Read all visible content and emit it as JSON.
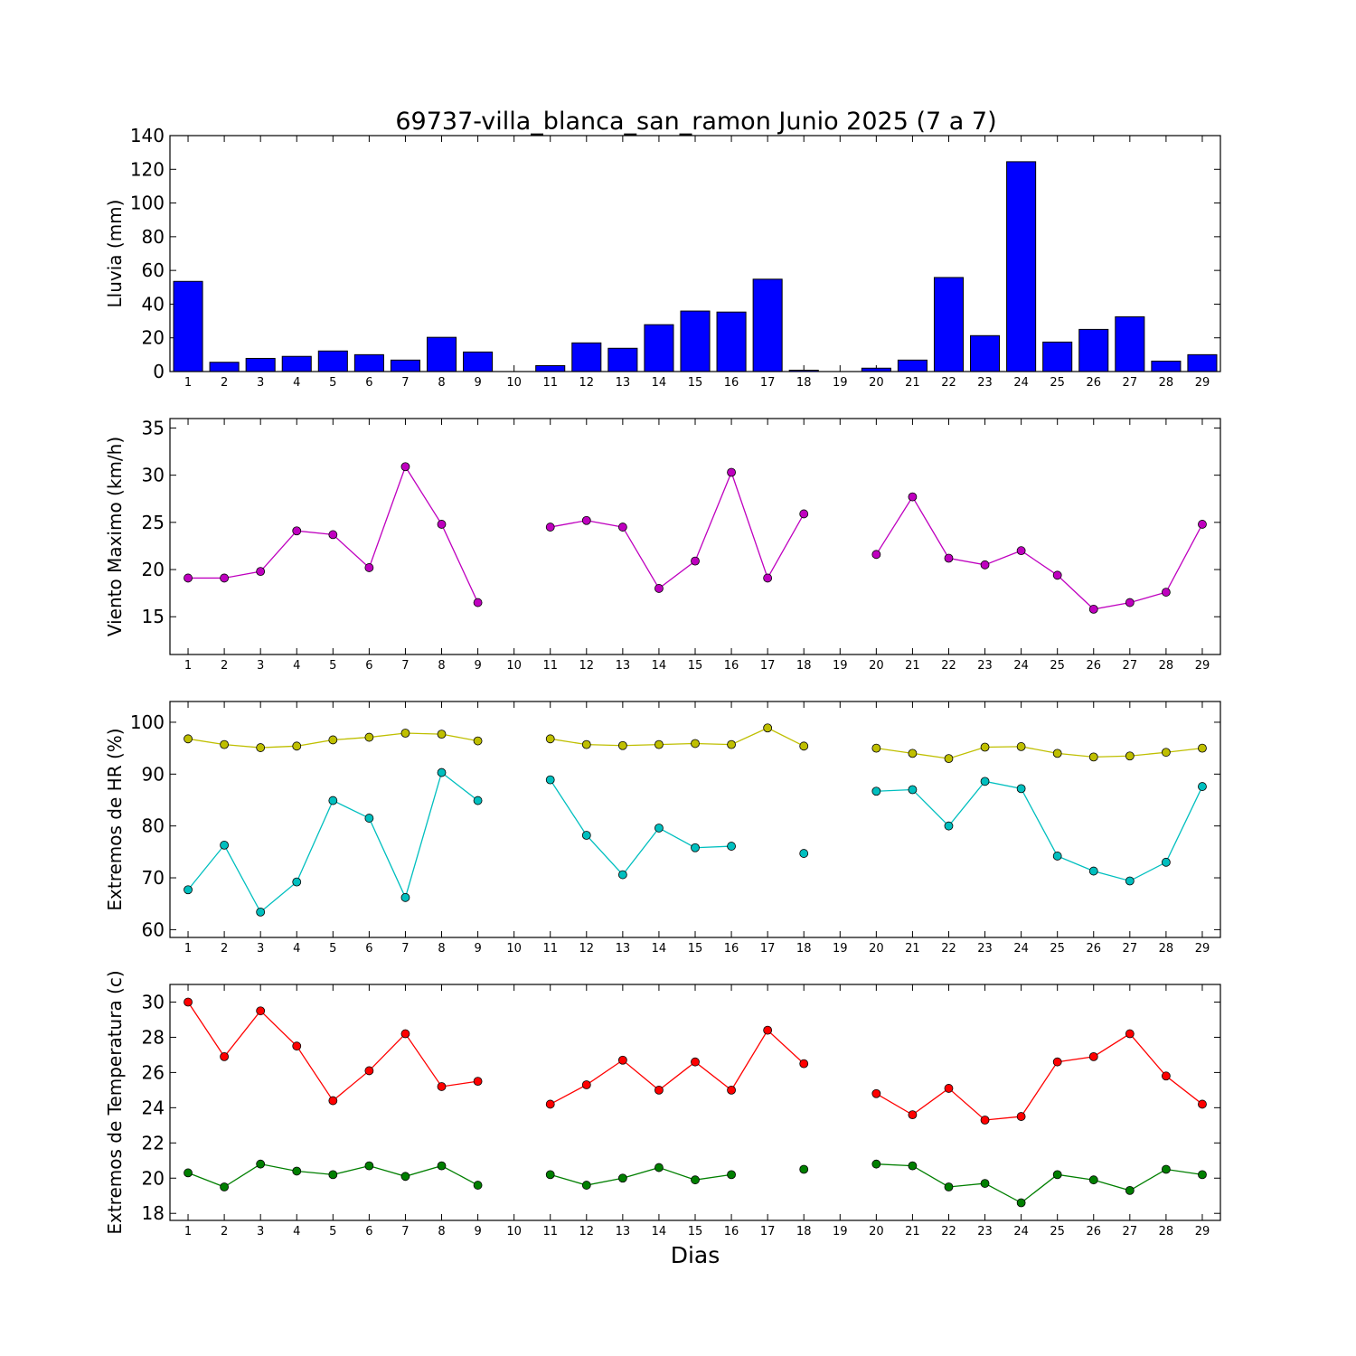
{
  "figure": {
    "title": "69737-villa_blanca_san_ramon Junio 2025  (7 a 7)",
    "xlabel": "Dias"
  },
  "chart_data": [
    {
      "type": "bar",
      "ylabel": "Lluvia (mm)",
      "ylim": [
        0,
        140
      ],
      "yticks": [
        0,
        20,
        40,
        60,
        80,
        100,
        120,
        140
      ],
      "categories": [
        "1",
        "2",
        "3",
        "4",
        "5",
        "6",
        "7",
        "8",
        "9",
        "10",
        "11",
        "12",
        "13",
        "14",
        "15",
        "16",
        "17",
        "18",
        "19",
        "20",
        "21",
        "22",
        "23",
        "24",
        "25",
        "26",
        "27",
        "28",
        "29"
      ],
      "series": [
        {
          "color": "#0000ff",
          "values": [
            53.5,
            5.5,
            7.8,
            9.0,
            12.2,
            10.0,
            6.8,
            20.3,
            11.6,
            0,
            3.5,
            17.0,
            13.8,
            27.8,
            35.9,
            35.3,
            54.8,
            0.8,
            0,
            2.0,
            6.8,
            55.8,
            21.3,
            124.5,
            17.5,
            25.0,
            32.5,
            6.2,
            10.0
          ]
        }
      ],
      "grid": false
    },
    {
      "type": "line",
      "ylabel": "Viento Maximo (km/h)",
      "ylim": [
        11,
        36
      ],
      "yticks": [
        15,
        20,
        25,
        30,
        35
      ],
      "categories": [
        "1",
        "2",
        "3",
        "4",
        "5",
        "6",
        "7",
        "8",
        "9",
        "10",
        "11",
        "12",
        "13",
        "14",
        "15",
        "16",
        "17",
        "18",
        "19",
        "20",
        "21",
        "22",
        "23",
        "24",
        "25",
        "26",
        "27",
        "28",
        "29"
      ],
      "series": [
        {
          "color": "#bf00bf",
          "values": [
            19.1,
            19.1,
            19.8,
            24.1,
            23.7,
            20.2,
            30.9,
            24.8,
            16.5,
            null,
            24.5,
            25.2,
            24.5,
            18.0,
            20.9,
            30.3,
            19.1,
            25.9,
            null,
            21.6,
            27.7,
            21.2,
            20.5,
            22.0,
            19.4,
            15.8,
            16.5,
            17.6,
            24.8
          ]
        }
      ],
      "grid": false
    },
    {
      "type": "line",
      "ylabel": "Extremos de HR (%)",
      "ylim": [
        58.5,
        104
      ],
      "yticks": [
        60,
        70,
        80,
        90,
        100
      ],
      "categories": [
        "1",
        "2",
        "3",
        "4",
        "5",
        "6",
        "7",
        "8",
        "9",
        "10",
        "11",
        "12",
        "13",
        "14",
        "15",
        "16",
        "17",
        "18",
        "19",
        "20",
        "21",
        "22",
        "23",
        "24",
        "25",
        "26",
        "27",
        "28",
        "29"
      ],
      "series": [
        {
          "color": "#bfbf00",
          "values": [
            96.8,
            95.7,
            95.1,
            95.4,
            96.6,
            97.1,
            97.9,
            97.7,
            96.4,
            null,
            96.8,
            95.7,
            95.5,
            95.7,
            95.9,
            95.7,
            98.9,
            95.4,
            null,
            95.0,
            94.0,
            93.0,
            95.2,
            95.3,
            94.0,
            93.3,
            93.5,
            94.2,
            95.0
          ]
        },
        {
          "color": "#00bfbf",
          "values": [
            67.7,
            76.3,
            63.4,
            69.2,
            84.9,
            81.5,
            66.2,
            90.3,
            84.9,
            null,
            88.9,
            78.2,
            70.6,
            79.6,
            75.8,
            76.1,
            null,
            74.7,
            null,
            86.7,
            87.0,
            80.0,
            88.6,
            87.2,
            74.2,
            71.3,
            69.4,
            73.0,
            87.6
          ]
        }
      ],
      "grid": false
    },
    {
      "type": "line",
      "ylabel": "Extremos de Temperatura (c)",
      "ylim": [
        17.6,
        31
      ],
      "yticks": [
        18,
        20,
        22,
        24,
        26,
        28,
        30
      ],
      "categories": [
        "1",
        "2",
        "3",
        "4",
        "5",
        "6",
        "7",
        "8",
        "9",
        "10",
        "11",
        "12",
        "13",
        "14",
        "15",
        "16",
        "17",
        "18",
        "19",
        "20",
        "21",
        "22",
        "23",
        "24",
        "25",
        "26",
        "27",
        "28",
        "29"
      ],
      "series": [
        {
          "color": "#ff0000",
          "values": [
            30.0,
            26.9,
            29.5,
            27.5,
            24.4,
            26.1,
            28.2,
            25.2,
            25.5,
            null,
            24.2,
            25.3,
            26.7,
            25.0,
            26.6,
            25.0,
            28.4,
            26.5,
            null,
            24.8,
            23.6,
            25.1,
            23.3,
            23.5,
            26.6,
            26.9,
            28.2,
            25.8,
            24.2
          ]
        },
        {
          "color": "#007f00",
          "values": [
            20.3,
            19.5,
            20.8,
            20.4,
            20.2,
            20.7,
            20.1,
            20.7,
            19.6,
            null,
            20.2,
            19.6,
            20.0,
            20.6,
            19.9,
            20.2,
            null,
            20.5,
            null,
            20.8,
            20.7,
            19.5,
            19.7,
            18.6,
            20.2,
            19.9,
            19.3,
            20.5,
            20.2
          ]
        }
      ],
      "grid": false
    }
  ]
}
